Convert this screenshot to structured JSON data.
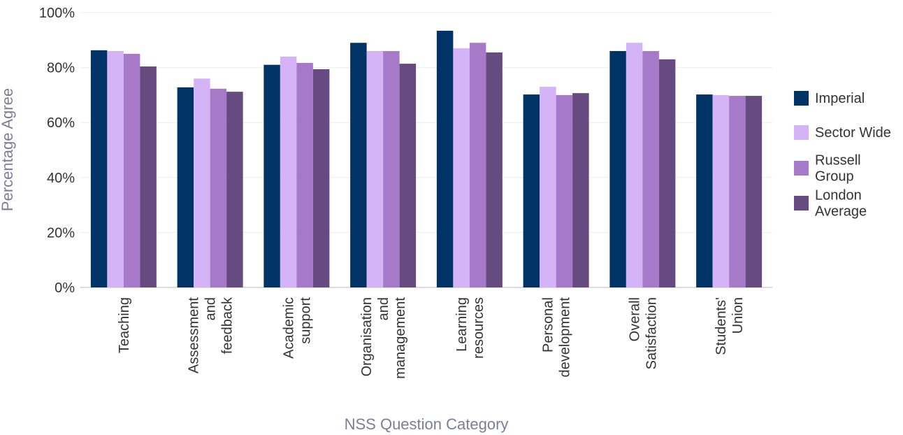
{
  "chart_data": {
    "type": "bar",
    "y_label": "Percentage Agree",
    "x_label": "NSS Question Category",
    "categories": [
      "Teaching",
      "Assessment and feedback",
      "Academic support",
      "Organisation and management",
      "Learning resources",
      "Personal development",
      "Overall Satisfaction",
      "Students' Union"
    ],
    "series": [
      {
        "name": "Imperial",
        "color": "#003366",
        "values": [
          86.3,
          72.8,
          81,
          89,
          93.4,
          70.2,
          86,
          70.2
        ]
      },
      {
        "name": "Sector Wide",
        "color": "#d5b3f7",
        "values": [
          86,
          76,
          84,
          86,
          87,
          73,
          89,
          70
        ]
      },
      {
        "name": "Russell Group",
        "color": "#a67ac8",
        "values": [
          85,
          72.3,
          81.7,
          86,
          89,
          70,
          86,
          69.7
        ]
      },
      {
        "name": "London Average",
        "color": "#664b80",
        "values": [
          80.4,
          71.2,
          79.4,
          81.4,
          85.5,
          70.7,
          83,
          69.7
        ]
      }
    ],
    "ylim": [
      0,
      100
    ],
    "yticks": [
      {
        "value": 0,
        "label": "0%"
      },
      {
        "value": 20,
        "label": "20%"
      },
      {
        "value": 40,
        "label": "40%"
      },
      {
        "value": 60,
        "label": "60%"
      },
      {
        "value": 80,
        "label": "80%"
      },
      {
        "value": 100,
        "label": "100%"
      }
    ],
    "grid": true,
    "legend": "right"
  }
}
